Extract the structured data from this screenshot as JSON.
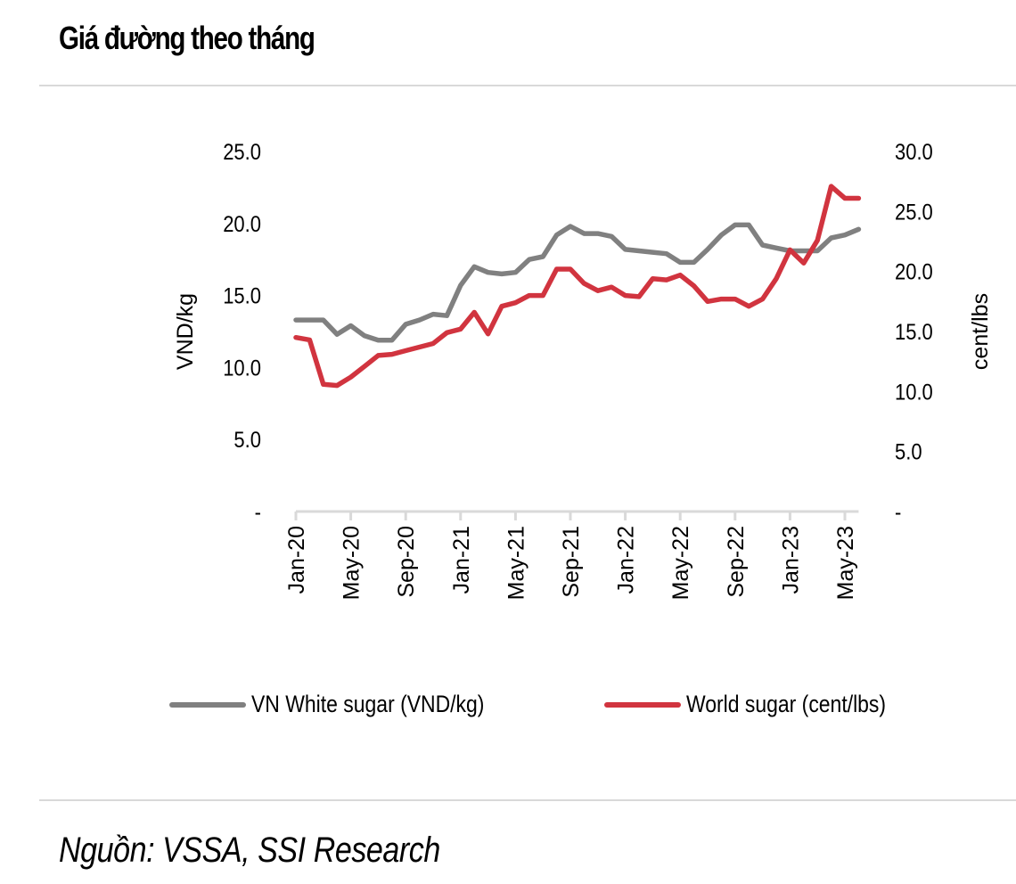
{
  "title": "Giá đường theo tháng",
  "source": "Nguồn: VSSA, SSI Research",
  "colors": {
    "vn": "#808080",
    "world": "#d1343f",
    "axis": "#d9d9d9"
  },
  "chart_data": {
    "type": "line",
    "title": "Giá đường theo tháng",
    "xlabel": "",
    "ylabel": "VND/kg",
    "y2label": "cent/lbs",
    "ylim": [
      0,
      25
    ],
    "y2lim": [
      0,
      30
    ],
    "y_ticks": [
      "-",
      "5.0",
      "10.0",
      "15.0",
      "20.0",
      "25.0"
    ],
    "y2_ticks": [
      "-",
      "5.0",
      "10.0",
      "15.0",
      "20.0",
      "25.0",
      "30.0"
    ],
    "y_tick_values": [
      0,
      5,
      10,
      15,
      20,
      25
    ],
    "y2_tick_values": [
      0,
      5,
      10,
      15,
      20,
      25,
      30
    ],
    "x_tick_labels": [
      "Jan-20",
      "May-20",
      "Sep-20",
      "Jan-21",
      "May-21",
      "Sep-21",
      "Jan-22",
      "May-22",
      "Sep-22",
      "Jan-23",
      "May-23"
    ],
    "x_tick_indices": [
      0,
      4,
      8,
      12,
      16,
      20,
      24,
      28,
      32,
      36,
      40
    ],
    "x": [
      "Jan-20",
      "Feb-20",
      "Mar-20",
      "Apr-20",
      "May-20",
      "Jun-20",
      "Jul-20",
      "Aug-20",
      "Sep-20",
      "Oct-20",
      "Nov-20",
      "Dec-20",
      "Jan-21",
      "Feb-21",
      "Mar-21",
      "Apr-21",
      "May-21",
      "Jun-21",
      "Jul-21",
      "Aug-21",
      "Sep-21",
      "Oct-21",
      "Nov-21",
      "Dec-21",
      "Jan-22",
      "Feb-22",
      "Mar-22",
      "Apr-22",
      "May-22",
      "Jun-22",
      "Jul-22",
      "Aug-22",
      "Sep-22",
      "Oct-22",
      "Nov-22",
      "Dec-22",
      "Jan-23",
      "Feb-23",
      "Mar-23",
      "Apr-23",
      "May-23",
      "Jun-23"
    ],
    "grid": false,
    "legend": "bottom",
    "series": [
      {
        "name": "VN White sugar (VND/kg)",
        "axis": "left",
        "color": "#808080",
        "values": [
          13.3,
          13.3,
          13.3,
          12.3,
          12.9,
          12.2,
          11.9,
          11.9,
          13.0,
          13.3,
          13.7,
          13.6,
          15.7,
          17.0,
          16.6,
          16.5,
          16.6,
          17.5,
          17.7,
          19.2,
          19.8,
          19.3,
          19.3,
          19.1,
          18.2,
          18.1,
          18.0,
          17.9,
          17.3,
          17.3,
          18.2,
          19.2,
          19.9,
          19.9,
          18.5,
          18.3,
          18.1,
          18.1,
          18.1,
          19.0,
          19.2,
          19.6
        ]
      },
      {
        "name": "World sugar (cent/lbs)",
        "axis": "right",
        "color": "#d1343f",
        "values": [
          14.5,
          14.3,
          10.6,
          10.5,
          11.2,
          12.1,
          13.0,
          13.1,
          13.4,
          13.7,
          14.0,
          14.9,
          15.2,
          16.6,
          14.8,
          17.1,
          17.4,
          18.0,
          18.0,
          20.2,
          20.2,
          19.0,
          18.4,
          18.7,
          18.0,
          17.9,
          19.4,
          19.3,
          19.7,
          18.8,
          17.5,
          17.7,
          17.7,
          17.1,
          17.7,
          19.4,
          21.8,
          20.7,
          22.6,
          27.1,
          26.1,
          26.1
        ]
      }
    ]
  }
}
